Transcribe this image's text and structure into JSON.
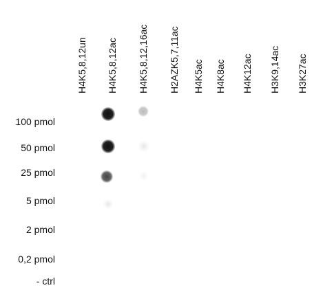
{
  "columns": [
    "H4K5,8,12un",
    "H4K5,8,12ac",
    "H4K5,8,12,16ac",
    "H2AZK5,7,11ac",
    "H4K5ac",
    "H4K8ac",
    "H4K12ac",
    "H3K9,14ac",
    "H3K27ac"
  ],
  "rows": [
    "100 pmol",
    "50 pmol",
    "25 pmol",
    "5 pmol",
    "2 pmol",
    "0,2 pmol",
    "- ctrl"
  ]
}
